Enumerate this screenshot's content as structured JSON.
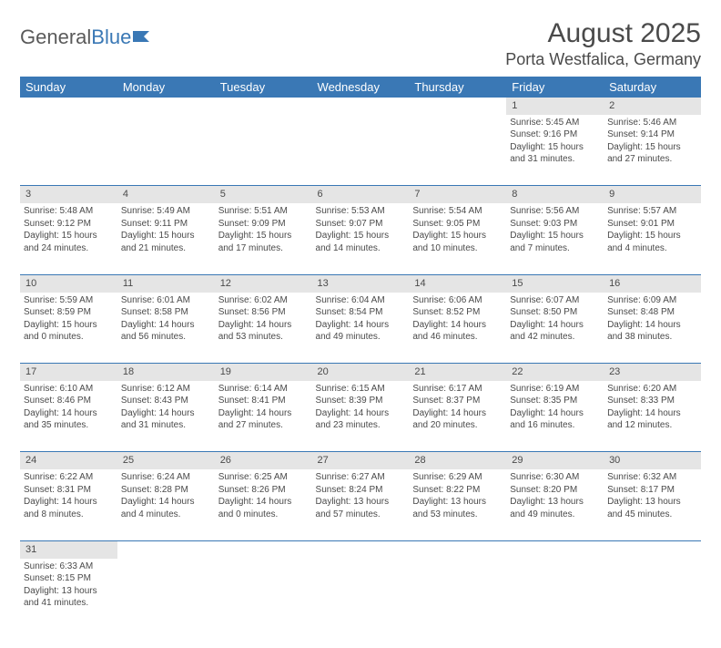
{
  "brand": {
    "part1": "General",
    "part2": "Blue"
  },
  "title": "August 2025",
  "location": "Porta Westfalica, Germany",
  "colors": {
    "header_bg": "#3a78b5",
    "header_text": "#ffffff",
    "daynum_bg": "#e5e5e5",
    "text": "#4a4a4a",
    "rule": "#3a78b5",
    "page_bg": "#ffffff"
  },
  "day_labels": [
    "Sunday",
    "Monday",
    "Tuesday",
    "Wednesday",
    "Thursday",
    "Friday",
    "Saturday"
  ],
  "weeks": [
    [
      null,
      null,
      null,
      null,
      null,
      {
        "n": "1",
        "sr": "Sunrise: 5:45 AM",
        "ss": "Sunset: 9:16 PM",
        "d1": "Daylight: 15 hours",
        "d2": "and 31 minutes."
      },
      {
        "n": "2",
        "sr": "Sunrise: 5:46 AM",
        "ss": "Sunset: 9:14 PM",
        "d1": "Daylight: 15 hours",
        "d2": "and 27 minutes."
      }
    ],
    [
      {
        "n": "3",
        "sr": "Sunrise: 5:48 AM",
        "ss": "Sunset: 9:12 PM",
        "d1": "Daylight: 15 hours",
        "d2": "and 24 minutes."
      },
      {
        "n": "4",
        "sr": "Sunrise: 5:49 AM",
        "ss": "Sunset: 9:11 PM",
        "d1": "Daylight: 15 hours",
        "d2": "and 21 minutes."
      },
      {
        "n": "5",
        "sr": "Sunrise: 5:51 AM",
        "ss": "Sunset: 9:09 PM",
        "d1": "Daylight: 15 hours",
        "d2": "and 17 minutes."
      },
      {
        "n": "6",
        "sr": "Sunrise: 5:53 AM",
        "ss": "Sunset: 9:07 PM",
        "d1": "Daylight: 15 hours",
        "d2": "and 14 minutes."
      },
      {
        "n": "7",
        "sr": "Sunrise: 5:54 AM",
        "ss": "Sunset: 9:05 PM",
        "d1": "Daylight: 15 hours",
        "d2": "and 10 minutes."
      },
      {
        "n": "8",
        "sr": "Sunrise: 5:56 AM",
        "ss": "Sunset: 9:03 PM",
        "d1": "Daylight: 15 hours",
        "d2": "and 7 minutes."
      },
      {
        "n": "9",
        "sr": "Sunrise: 5:57 AM",
        "ss": "Sunset: 9:01 PM",
        "d1": "Daylight: 15 hours",
        "d2": "and 4 minutes."
      }
    ],
    [
      {
        "n": "10",
        "sr": "Sunrise: 5:59 AM",
        "ss": "Sunset: 8:59 PM",
        "d1": "Daylight: 15 hours",
        "d2": "and 0 minutes."
      },
      {
        "n": "11",
        "sr": "Sunrise: 6:01 AM",
        "ss": "Sunset: 8:58 PM",
        "d1": "Daylight: 14 hours",
        "d2": "and 56 minutes."
      },
      {
        "n": "12",
        "sr": "Sunrise: 6:02 AM",
        "ss": "Sunset: 8:56 PM",
        "d1": "Daylight: 14 hours",
        "d2": "and 53 minutes."
      },
      {
        "n": "13",
        "sr": "Sunrise: 6:04 AM",
        "ss": "Sunset: 8:54 PM",
        "d1": "Daylight: 14 hours",
        "d2": "and 49 minutes."
      },
      {
        "n": "14",
        "sr": "Sunrise: 6:06 AM",
        "ss": "Sunset: 8:52 PM",
        "d1": "Daylight: 14 hours",
        "d2": "and 46 minutes."
      },
      {
        "n": "15",
        "sr": "Sunrise: 6:07 AM",
        "ss": "Sunset: 8:50 PM",
        "d1": "Daylight: 14 hours",
        "d2": "and 42 minutes."
      },
      {
        "n": "16",
        "sr": "Sunrise: 6:09 AM",
        "ss": "Sunset: 8:48 PM",
        "d1": "Daylight: 14 hours",
        "d2": "and 38 minutes."
      }
    ],
    [
      {
        "n": "17",
        "sr": "Sunrise: 6:10 AM",
        "ss": "Sunset: 8:46 PM",
        "d1": "Daylight: 14 hours",
        "d2": "and 35 minutes."
      },
      {
        "n": "18",
        "sr": "Sunrise: 6:12 AM",
        "ss": "Sunset: 8:43 PM",
        "d1": "Daylight: 14 hours",
        "d2": "and 31 minutes."
      },
      {
        "n": "19",
        "sr": "Sunrise: 6:14 AM",
        "ss": "Sunset: 8:41 PM",
        "d1": "Daylight: 14 hours",
        "d2": "and 27 minutes."
      },
      {
        "n": "20",
        "sr": "Sunrise: 6:15 AM",
        "ss": "Sunset: 8:39 PM",
        "d1": "Daylight: 14 hours",
        "d2": "and 23 minutes."
      },
      {
        "n": "21",
        "sr": "Sunrise: 6:17 AM",
        "ss": "Sunset: 8:37 PM",
        "d1": "Daylight: 14 hours",
        "d2": "and 20 minutes."
      },
      {
        "n": "22",
        "sr": "Sunrise: 6:19 AM",
        "ss": "Sunset: 8:35 PM",
        "d1": "Daylight: 14 hours",
        "d2": "and 16 minutes."
      },
      {
        "n": "23",
        "sr": "Sunrise: 6:20 AM",
        "ss": "Sunset: 8:33 PM",
        "d1": "Daylight: 14 hours",
        "d2": "and 12 minutes."
      }
    ],
    [
      {
        "n": "24",
        "sr": "Sunrise: 6:22 AM",
        "ss": "Sunset: 8:31 PM",
        "d1": "Daylight: 14 hours",
        "d2": "and 8 minutes."
      },
      {
        "n": "25",
        "sr": "Sunrise: 6:24 AM",
        "ss": "Sunset: 8:28 PM",
        "d1": "Daylight: 14 hours",
        "d2": "and 4 minutes."
      },
      {
        "n": "26",
        "sr": "Sunrise: 6:25 AM",
        "ss": "Sunset: 8:26 PM",
        "d1": "Daylight: 14 hours",
        "d2": "and 0 minutes."
      },
      {
        "n": "27",
        "sr": "Sunrise: 6:27 AM",
        "ss": "Sunset: 8:24 PM",
        "d1": "Daylight: 13 hours",
        "d2": "and 57 minutes."
      },
      {
        "n": "28",
        "sr": "Sunrise: 6:29 AM",
        "ss": "Sunset: 8:22 PM",
        "d1": "Daylight: 13 hours",
        "d2": "and 53 minutes."
      },
      {
        "n": "29",
        "sr": "Sunrise: 6:30 AM",
        "ss": "Sunset: 8:20 PM",
        "d1": "Daylight: 13 hours",
        "d2": "and 49 minutes."
      },
      {
        "n": "30",
        "sr": "Sunrise: 6:32 AM",
        "ss": "Sunset: 8:17 PM",
        "d1": "Daylight: 13 hours",
        "d2": "and 45 minutes."
      }
    ],
    [
      {
        "n": "31",
        "sr": "Sunrise: 6:33 AM",
        "ss": "Sunset: 8:15 PM",
        "d1": "Daylight: 13 hours",
        "d2": "and 41 minutes."
      },
      null,
      null,
      null,
      null,
      null,
      null
    ]
  ]
}
